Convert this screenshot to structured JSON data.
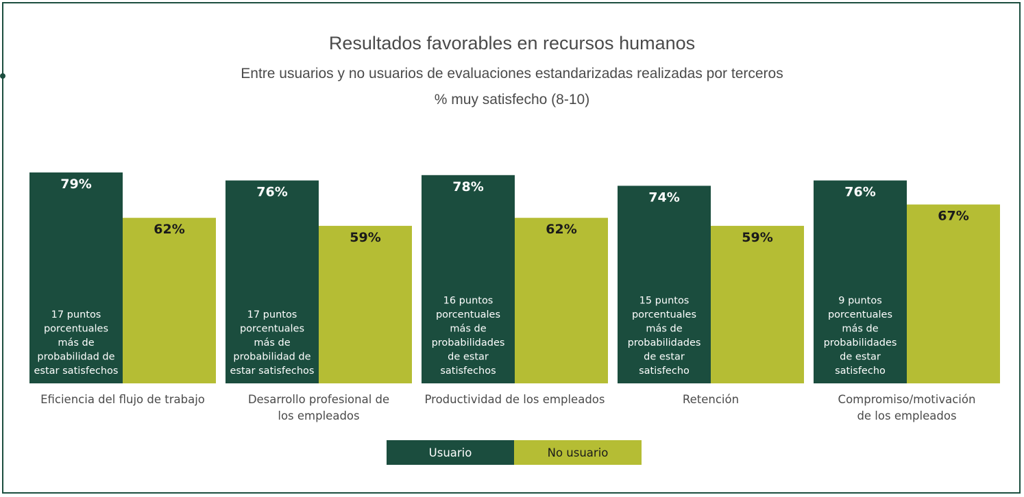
{
  "header": {
    "title": "Resultados favorables en recursos humanos",
    "subtitle": "Entre usuarios y no usuarios de evaluaciones estandarizadas realizadas por terceros",
    "subtitle2": "% muy satisfecho (8-10)"
  },
  "colors": {
    "usuario": "#1b4d3e",
    "no_usuario": "#b5bd34",
    "text": "#4a4a4a",
    "border": "#1b4d3e"
  },
  "legend": {
    "usuario_label": "Usuario",
    "no_usuario_label": "No usuario"
  },
  "chart_data": {
    "type": "bar",
    "ylim": [
      0,
      100
    ],
    "categories": [
      [
        "Eficiencia del flujo de trabajo"
      ],
      [
        "Desarrollo profesional de",
        "los empleados"
      ],
      [
        "Productividad de los empleados"
      ],
      [
        "Retención"
      ],
      [
        "Compromiso/motivación",
        "de los empleados"
      ]
    ],
    "series": [
      {
        "name": "Usuario",
        "values": [
          79,
          76,
          78,
          74,
          76
        ],
        "labels": [
          "79%",
          "76%",
          "78%",
          "74%",
          "76%"
        ]
      },
      {
        "name": "No usuario",
        "values": [
          62,
          59,
          62,
          59,
          67
        ],
        "labels": [
          "62%",
          "59%",
          "62%",
          "59%",
          "67%"
        ]
      }
    ],
    "annotations": [
      [
        "17 puntos",
        "porcentuales",
        "más de",
        "probabilidad de",
        "estar satisfechos"
      ],
      [
        "17 puntos",
        "porcentuales",
        "más de",
        "probabilidad de",
        "estar satisfechos"
      ],
      [
        "16 puntos",
        "porcentuales",
        "más de",
        "probabilidades",
        "de estar",
        "satisfechos"
      ],
      [
        "15 puntos",
        "porcentuales",
        "más de",
        "probabilidades",
        "de estar",
        "satisfecho"
      ],
      [
        "9 puntos",
        "porcentuales",
        "más de",
        "probabilidades",
        "de estar",
        "satisfecho"
      ]
    ],
    "legend_position": "bottom"
  }
}
